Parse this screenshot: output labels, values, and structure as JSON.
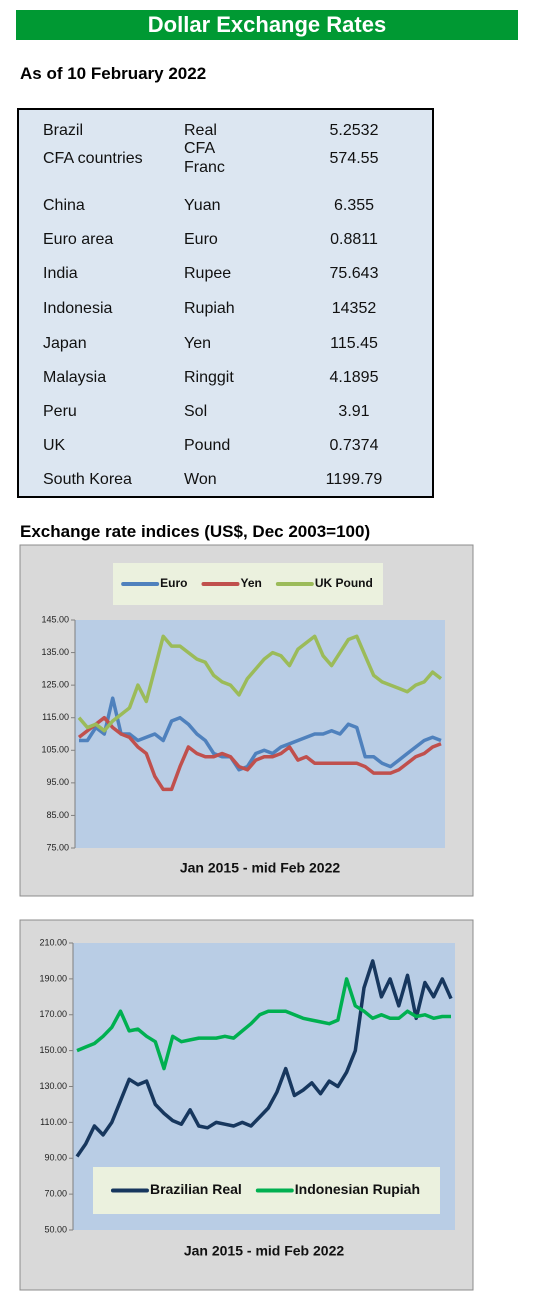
{
  "header": {
    "title": "Dollar Exchange Rates"
  },
  "date": "As of 10 February 2022",
  "table": {
    "rows": [
      [
        "Brazil",
        "Real",
        "5.2532"
      ],
      [
        "CFA countries",
        "CFA Franc",
        "574.55"
      ],
      [
        "China",
        "Yuan",
        "6.355"
      ],
      [
        "Euro area",
        "Euro",
        "0.8811"
      ],
      [
        "India",
        "Rupee",
        "75.643"
      ],
      [
        "Indonesia",
        "Rupiah",
        "14352"
      ],
      [
        "Japan",
        "Yen",
        "115.45"
      ],
      [
        "Malaysia",
        "Ringgit",
        "4.1895"
      ],
      [
        "Peru",
        "Sol",
        "3.91"
      ],
      [
        "UK",
        "Pound",
        "0.7374"
      ],
      [
        "South Korea",
        "Won",
        "1199.79"
      ]
    ]
  },
  "charts_heading": "Exchange rate indices (US$, Dec 2003=100)",
  "chart_data": [
    {
      "type": "line",
      "x_label": "Jan 2015 - mid Feb 2022",
      "legend": "top",
      "grid": false,
      "ylim": [
        75,
        145
      ],
      "yticks": [
        {
          "value": 75,
          "label": "75.00"
        },
        {
          "value": 85,
          "label": "85.00"
        },
        {
          "value": 95,
          "label": "95.00"
        },
        {
          "value": 105,
          "label": "105.00"
        },
        {
          "value": 115,
          "label": "115.00"
        },
        {
          "value": 125,
          "label": "125.00"
        },
        {
          "value": 135,
          "label": "135.00"
        },
        {
          "value": 145,
          "label": "145.00"
        }
      ],
      "series": [
        {
          "name": "Euro",
          "color": "#4f81bd",
          "values": [
            108,
            108,
            112,
            110,
            121,
            110,
            110,
            108,
            109,
            110,
            108,
            114,
            115,
            113,
            110,
            108,
            104,
            103,
            103,
            99,
            100,
            104,
            105,
            104,
            106,
            107,
            108,
            109,
            110,
            110,
            111,
            110,
            113,
            112,
            103,
            103,
            101,
            100,
            102,
            104,
            106,
            108,
            109,
            108
          ]
        },
        {
          "name": "Yen",
          "color": "#c0504d",
          "values": [
            109,
            111,
            113,
            115,
            112,
            110,
            109,
            106,
            104,
            97,
            93,
            93,
            100,
            106,
            104,
            103,
            103,
            104,
            103,
            100,
            99,
            102,
            103,
            103,
            104,
            106,
            102,
            103,
            101,
            101,
            101,
            101,
            101,
            101,
            100,
            98,
            98,
            98,
            99,
            101,
            103,
            104,
            106,
            107
          ]
        },
        {
          "name": "UK Pound",
          "color": "#9bbb59",
          "values": [
            115,
            112,
            113,
            111,
            114,
            116,
            118,
            125,
            120,
            130,
            140,
            137,
            137,
            135,
            133,
            132,
            128,
            126,
            125,
            122,
            127,
            130,
            133,
            135,
            134,
            131,
            136,
            138,
            140,
            134,
            131,
            135,
            139,
            140,
            134,
            128,
            126,
            125,
            124,
            123,
            125,
            126,
            129,
            127
          ]
        }
      ]
    },
    {
      "type": "line",
      "x_label": "Jan 2015 - mid Feb 2022",
      "legend": "bottom",
      "grid": false,
      "ylim": [
        50,
        210
      ],
      "yticks": [
        {
          "value": 50,
          "label": "50.00"
        },
        {
          "value": 70,
          "label": "70.00"
        },
        {
          "value": 90,
          "label": "90.00"
        },
        {
          "value": 110,
          "label": "110.00"
        },
        {
          "value": 130,
          "label": "130.00"
        },
        {
          "value": 150,
          "label": "150.00"
        },
        {
          "value": 170,
          "label": "170.00"
        },
        {
          "value": 190,
          "label": "190.00"
        },
        {
          "value": 210,
          "label": "210.00"
        }
      ],
      "series": [
        {
          "name": "Brazilian Real",
          "color": "#17375e",
          "values": [
            91,
            98,
            108,
            103,
            110,
            122,
            134,
            131,
            133,
            120,
            115,
            111,
            109,
            117,
            108,
            107,
            110,
            109,
            108,
            110,
            108,
            113,
            118,
            127,
            140,
            125,
            128,
            132,
            126,
            133,
            130,
            138,
            150,
            185,
            200,
            180,
            190,
            175,
            192,
            168,
            188,
            180,
            190,
            179
          ]
        },
        {
          "name": "Indonesian Rupiah",
          "color": "#00b050",
          "values": [
            150,
            152,
            154,
            158,
            163,
            172,
            161,
            162,
            158,
            155,
            140,
            158,
            155,
            156,
            157,
            157,
            157,
            158,
            157,
            161,
            165,
            170,
            172,
            172,
            172,
            170,
            168,
            167,
            166,
            165,
            167,
            190,
            175,
            172,
            168,
            170,
            168,
            168,
            172,
            169,
            170,
            168,
            169,
            169
          ]
        }
      ]
    }
  ]
}
